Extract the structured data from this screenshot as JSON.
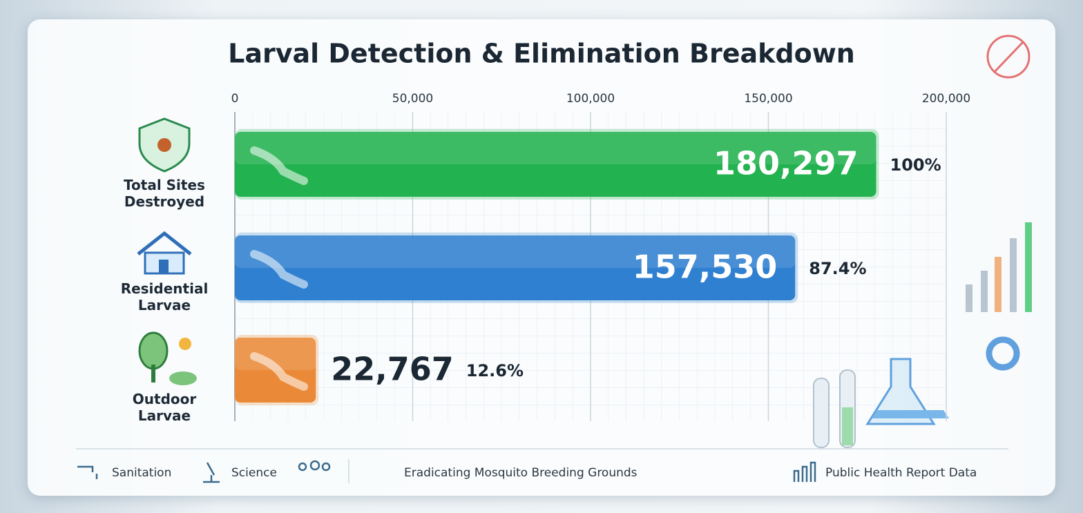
{
  "chart_data": {
    "type": "bar",
    "orientation": "horizontal",
    "title": "Larval Detection & Elimination Breakdown",
    "categories": [
      "Total Sites Destroyed",
      "Residential Larvae",
      "Outdoor Larvae"
    ],
    "values": [
      180297,
      157530,
      22767
    ],
    "value_labels": [
      "180,297",
      "157,530",
      "22,767"
    ],
    "percent_labels": [
      "100%",
      "87.4%",
      "12.6%"
    ],
    "colors": [
      "#22b24f",
      "#2f80d0",
      "#ea8a38"
    ],
    "xlim": [
      0,
      200000
    ],
    "xticks": [
      0,
      {
        "value": 50000,
        "label": "50,000"
      },
      {
        "value": 100000,
        "label": "100,000"
      },
      {
        "value": 150000,
        "label": "150,000"
      },
      {
        "value": 200000,
        "label": "200,000"
      }
    ],
    "grid": true
  },
  "footer": {
    "left": [
      "Sanitation",
      "Science"
    ],
    "center": "Eradicating Mosquito Breeding Grounds",
    "right": "Public Health Report Data"
  }
}
